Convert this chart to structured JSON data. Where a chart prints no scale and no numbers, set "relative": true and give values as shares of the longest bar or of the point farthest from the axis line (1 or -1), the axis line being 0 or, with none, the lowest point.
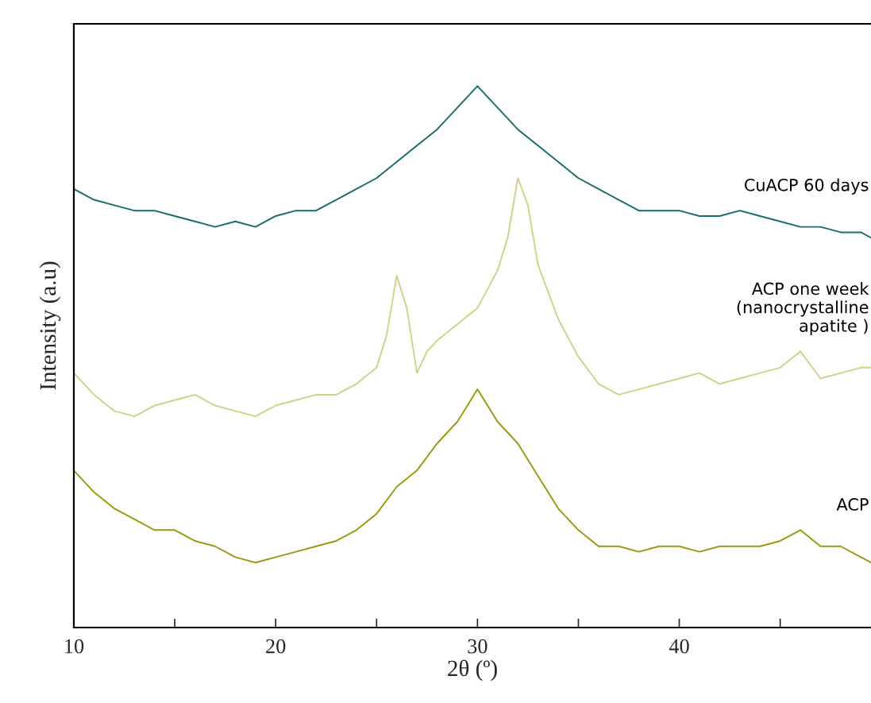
{
  "chart_data": {
    "type": "line",
    "relative": true,
    "xlabel": "2θ (º)",
    "ylabel": "Intensity (a.u)",
    "x": [
      10,
      11,
      12,
      13,
      14,
      15,
      16,
      17,
      18,
      19,
      20,
      21,
      22,
      23,
      24,
      25,
      26,
      27,
      28,
      29,
      30,
      31,
      32,
      33,
      34,
      35,
      36,
      37,
      38,
      39,
      40,
      41,
      42,
      43,
      44,
      45,
      46,
      47,
      48,
      49,
      49.5
    ],
    "xlim": [
      10,
      49.5
    ],
    "xticks": [
      10,
      {
        "value": 15,
        "label": null
      },
      20,
      {
        "value": 25,
        "label": null
      },
      30,
      {
        "value": 35,
        "label": null
      },
      40,
      {
        "value": 45,
        "label": null
      }
    ],
    "grid": false,
    "marker": "none",
    "line_style": "solid",
    "series": [
      {
        "name": "CuACP 60 days",
        "color": "#1a6b6b",
        "values": [
          0.81,
          0.79,
          0.78,
          0.77,
          0.77,
          0.76,
          0.75,
          0.74,
          0.75,
          0.74,
          0.76,
          0.77,
          0.77,
          0.79,
          0.81,
          0.83,
          0.86,
          0.89,
          0.92,
          0.96,
          1.0,
          0.96,
          0.92,
          0.89,
          0.86,
          0.83,
          0.81,
          0.79,
          0.77,
          0.77,
          0.77,
          0.76,
          0.76,
          0.77,
          0.76,
          0.75,
          0.74,
          0.74,
          0.73,
          0.73,
          0.72
        ]
      },
      {
        "name": "ACP one week\n(nanocrystalline\napatite )",
        "color": "#d4cf8a",
        "x": [
          10,
          11,
          12,
          13,
          14,
          15,
          16,
          17,
          18,
          19,
          20,
          21,
          22,
          23,
          24,
          25,
          25.5,
          26,
          26.5,
          27,
          27.5,
          28,
          29,
          30,
          31,
          31.5,
          32,
          32.5,
          33,
          34,
          35,
          36,
          37,
          38,
          39,
          40,
          41,
          42,
          43,
          44,
          45,
          46,
          47,
          48,
          49,
          49.5
        ],
        "values": [
          0.47,
          0.43,
          0.4,
          0.39,
          0.41,
          0.42,
          0.43,
          0.41,
          0.4,
          0.39,
          0.41,
          0.42,
          0.43,
          0.43,
          0.45,
          0.48,
          0.54,
          0.65,
          0.59,
          0.47,
          0.51,
          0.53,
          0.56,
          0.59,
          0.66,
          0.72,
          0.83,
          0.78,
          0.67,
          0.57,
          0.5,
          0.45,
          0.43,
          0.44,
          0.45,
          0.46,
          0.47,
          0.45,
          0.46,
          0.47,
          0.48,
          0.51,
          0.46,
          0.47,
          0.48,
          0.48
        ]
      },
      {
        "name": "ACP",
        "color": "#9a9a10",
        "values": [
          0.29,
          0.25,
          0.22,
          0.2,
          0.18,
          0.18,
          0.16,
          0.15,
          0.13,
          0.12,
          0.13,
          0.14,
          0.15,
          0.16,
          0.18,
          0.21,
          0.26,
          0.29,
          0.34,
          0.38,
          0.44,
          0.38,
          0.34,
          0.28,
          0.22,
          0.18,
          0.15,
          0.15,
          0.14,
          0.15,
          0.15,
          0.14,
          0.15,
          0.15,
          0.15,
          0.16,
          0.18,
          0.15,
          0.15,
          0.13,
          0.12
        ]
      }
    ]
  }
}
